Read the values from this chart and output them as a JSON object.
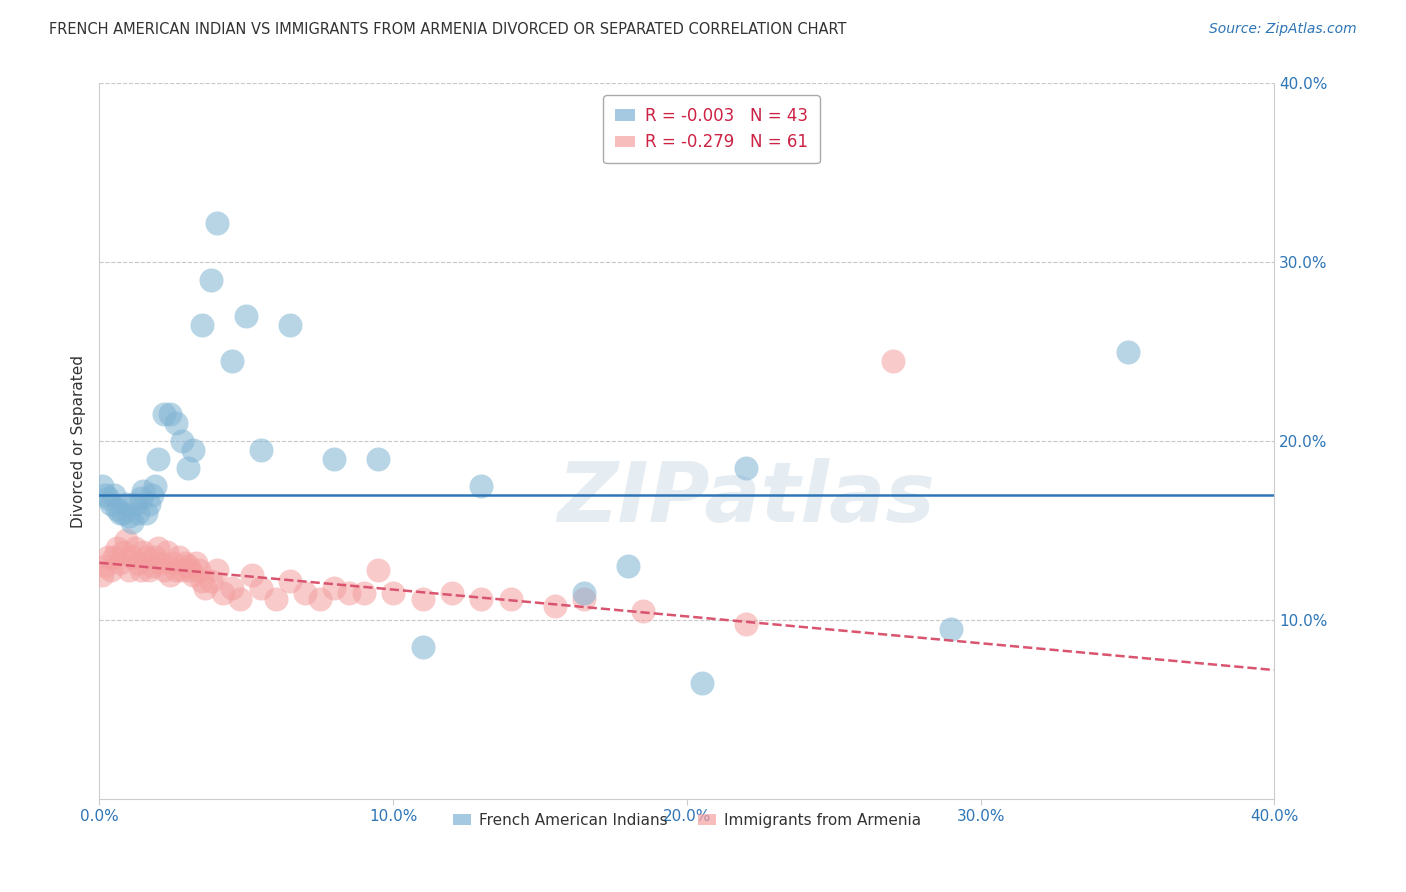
{
  "title": "FRENCH AMERICAN INDIAN VS IMMIGRANTS FROM ARMENIA DIVORCED OR SEPARATED CORRELATION CHART",
  "source": "Source: ZipAtlas.com",
  "ylabel": "Divorced or Separated",
  "xlim": [
    0.0,
    0.4
  ],
  "ylim": [
    0.0,
    0.4
  ],
  "xtick_labels": [
    "0.0%",
    "",
    "10.0%",
    "",
    "20.0%",
    "",
    "30.0%",
    "",
    "40.0%"
  ],
  "xtick_vals": [
    0.0,
    0.05,
    0.1,
    0.15,
    0.2,
    0.25,
    0.3,
    0.35,
    0.4
  ],
  "ytick_labels": [
    "10.0%",
    "20.0%",
    "30.0%",
    "40.0%"
  ],
  "ytick_vals": [
    0.1,
    0.2,
    0.3,
    0.4
  ],
  "grid_color": "#c8c8c8",
  "background_color": "#ffffff",
  "blue_color": "#7fb3d3",
  "pink_color": "#f4a0a0",
  "blue_line_color": "#2e75b6",
  "pink_line_color": "#d9546e",
  "legend_R_blue": "R = -0.003",
  "legend_N_blue": "N = 43",
  "legend_R_pink": "R = -0.279",
  "legend_N_pink": "N = 61",
  "legend_label_blue": "French American Indians",
  "legend_label_pink": "Immigrants from Armenia",
  "watermark": "ZIPatlas",
  "blue_line_y": 0.17,
  "pink_line_x0": 0.0,
  "pink_line_y0": 0.132,
  "pink_line_x1": 0.4,
  "pink_line_y1": 0.072,
  "blue_scatter_x": [
    0.001,
    0.002,
    0.003,
    0.004,
    0.005,
    0.006,
    0.007,
    0.008,
    0.009,
    0.01,
    0.011,
    0.012,
    0.013,
    0.014,
    0.015,
    0.016,
    0.017,
    0.018,
    0.019,
    0.02,
    0.022,
    0.024,
    0.026,
    0.028,
    0.03,
    0.032,
    0.035,
    0.038,
    0.04,
    0.045,
    0.05,
    0.055,
    0.065,
    0.08,
    0.095,
    0.11,
    0.13,
    0.165,
    0.18,
    0.205,
    0.22,
    0.29,
    0.35
  ],
  "blue_scatter_y": [
    0.175,
    0.17,
    0.168,
    0.165,
    0.17,
    0.162,
    0.16,
    0.16,
    0.165,
    0.158,
    0.155,
    0.165,
    0.16,
    0.168,
    0.172,
    0.16,
    0.165,
    0.17,
    0.175,
    0.19,
    0.215,
    0.215,
    0.21,
    0.2,
    0.185,
    0.195,
    0.265,
    0.29,
    0.322,
    0.245,
    0.27,
    0.195,
    0.265,
    0.19,
    0.19,
    0.085,
    0.175,
    0.115,
    0.13,
    0.065,
    0.185,
    0.095,
    0.25
  ],
  "pink_scatter_x": [
    0.001,
    0.002,
    0.003,
    0.004,
    0.005,
    0.006,
    0.007,
    0.008,
    0.009,
    0.01,
    0.011,
    0.012,
    0.013,
    0.014,
    0.015,
    0.016,
    0.017,
    0.018,
    0.019,
    0.02,
    0.021,
    0.022,
    0.023,
    0.024,
    0.025,
    0.026,
    0.027,
    0.028,
    0.029,
    0.03,
    0.031,
    0.032,
    0.033,
    0.034,
    0.035,
    0.036,
    0.038,
    0.04,
    0.042,
    0.045,
    0.048,
    0.052,
    0.055,
    0.06,
    0.065,
    0.07,
    0.075,
    0.08,
    0.085,
    0.09,
    0.095,
    0.1,
    0.11,
    0.12,
    0.13,
    0.14,
    0.155,
    0.165,
    0.185,
    0.22,
    0.27
  ],
  "pink_scatter_y": [
    0.125,
    0.13,
    0.135,
    0.128,
    0.135,
    0.14,
    0.132,
    0.138,
    0.145,
    0.128,
    0.135,
    0.14,
    0.132,
    0.128,
    0.138,
    0.135,
    0.128,
    0.13,
    0.135,
    0.14,
    0.132,
    0.128,
    0.138,
    0.125,
    0.132,
    0.128,
    0.135,
    0.128,
    0.132,
    0.13,
    0.128,
    0.125,
    0.132,
    0.128,
    0.122,
    0.118,
    0.122,
    0.128,
    0.115,
    0.118,
    0.112,
    0.125,
    0.118,
    0.112,
    0.122,
    0.115,
    0.112,
    0.118,
    0.115,
    0.115,
    0.128,
    0.115,
    0.112,
    0.115,
    0.112,
    0.112,
    0.108,
    0.112,
    0.105,
    0.098,
    0.245
  ]
}
